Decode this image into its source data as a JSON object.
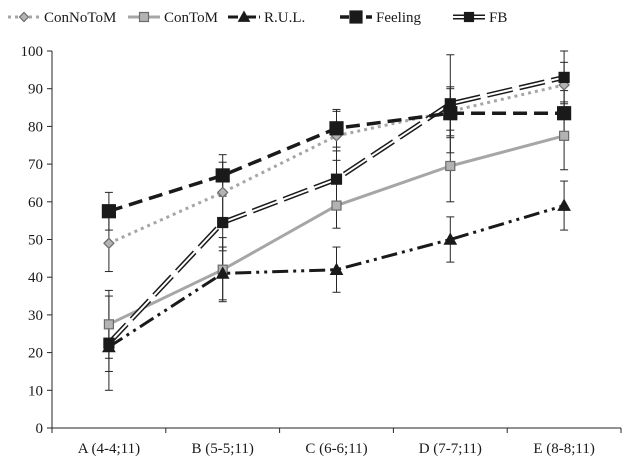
{
  "chart_data": {
    "type": "line",
    "title": "",
    "xlabel": "",
    "ylabel": "",
    "categories": [
      "A (4-4;11)",
      "B (5-5;11)",
      "C (6-6;11)",
      "D (7-7;11)",
      "E (8-8;11)"
    ],
    "ylim": [
      0,
      100
    ],
    "yticks": [
      0,
      10,
      20,
      30,
      40,
      50,
      60,
      70,
      80,
      90,
      100
    ],
    "grid": false,
    "legend_position": "top",
    "series": [
      {
        "name": "ConNoToM",
        "values": [
          49,
          62.5,
          77.5,
          84,
          91
        ],
        "error": [
          7.5,
          8,
          6.5,
          6.5,
          6
        ],
        "color": "#a6a6a6",
        "line_style": "dotted",
        "marker": "diamond"
      },
      {
        "name": "ConToM",
        "values": [
          27.5,
          42,
          59,
          69.5,
          77.5
        ],
        "error": [
          9,
          8.5,
          6,
          9.5,
          9
        ],
        "color": "#a6a6a6",
        "line_style": "solid",
        "marker": "square"
      },
      {
        "name": "R.U.L.",
        "values": [
          21.5,
          41,
          42,
          50,
          59
        ],
        "error": [
          6.5,
          7,
          6,
          6,
          6.5
        ],
        "color": "#1a1a1a",
        "line_style": "dash-dot-dot",
        "marker": "triangle"
      },
      {
        "name": "Feeling",
        "values": [
          57.5,
          67,
          79.5,
          83.5,
          83.5
        ],
        "error": [
          5,
          5.5,
          5,
          6.5,
          6
        ],
        "color": "#1a1a1a",
        "line_style": "dashed",
        "marker": "square"
      },
      {
        "name": "FB",
        "values": [
          22.5,
          54.5,
          66,
          86,
          93
        ],
        "error": [
          12.5,
          7.5,
          7.5,
          13,
          7
        ],
        "color": "#1a1a1a",
        "line_style": "double-long-dash",
        "marker": "square"
      }
    ]
  }
}
